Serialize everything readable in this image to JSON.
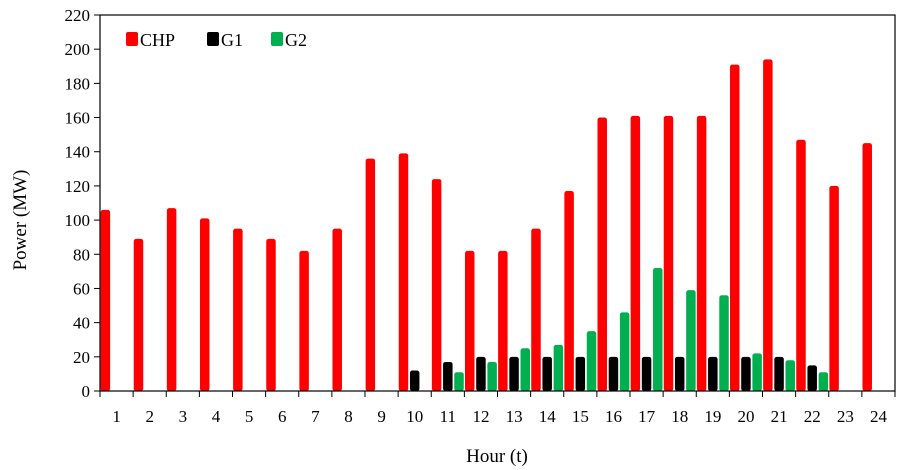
{
  "chart_data": {
    "type": "bar",
    "xlabel": "Hour (t)",
    "ylabel": "Power (MW)",
    "ylim": [
      0,
      220
    ],
    "yticks": [
      0,
      20,
      40,
      60,
      80,
      100,
      120,
      140,
      160,
      180,
      200,
      220
    ],
    "categories": [
      "1",
      "2",
      "3",
      "4",
      "5",
      "6",
      "7",
      "8",
      "9",
      "10",
      "11",
      "12",
      "13",
      "14",
      "15",
      "16",
      "17",
      "18",
      "19",
      "20",
      "21",
      "22",
      "23",
      "24"
    ],
    "legend_position": "top-left",
    "grid": false,
    "series": [
      {
        "name": "CHP",
        "color": "#ff0000",
        "values": [
          106,
          89,
          107,
          101,
          95,
          89,
          82,
          95,
          136,
          139,
          124,
          82,
          82,
          95,
          117,
          160,
          161,
          161,
          161,
          191,
          194,
          147,
          120,
          145
        ]
      },
      {
        "name": "G1",
        "color": "#000000",
        "values": [
          0,
          0,
          0,
          0,
          0,
          0,
          0,
          0,
          0,
          12,
          17,
          20,
          20,
          20,
          20,
          20,
          20,
          20,
          20,
          20,
          20,
          15,
          0,
          0
        ]
      },
      {
        "name": "G2",
        "color": "#00b050",
        "values": [
          0,
          0,
          0,
          0,
          0,
          0,
          0,
          0,
          0,
          0,
          11,
          17,
          25,
          27,
          35,
          46,
          72,
          59,
          56,
          22,
          18,
          11,
          0,
          0
        ]
      }
    ]
  }
}
